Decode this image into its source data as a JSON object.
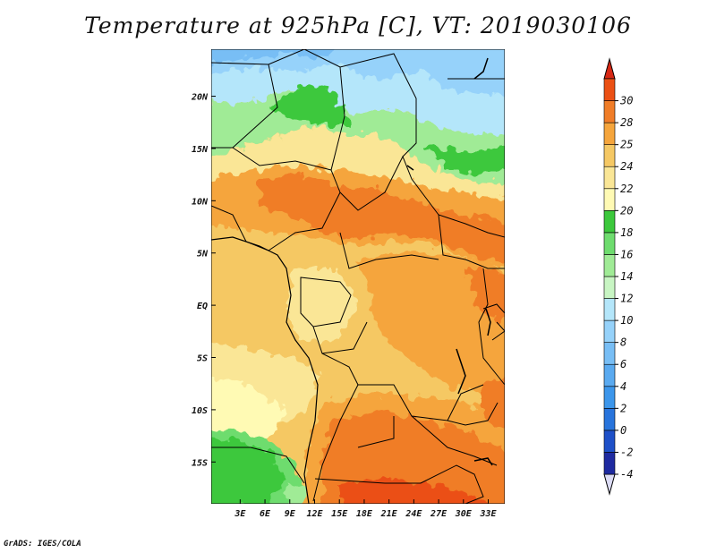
{
  "title": "Temperature at 925hPa [C], VT: 2019030106",
  "credit": "GrADS: IGES/COLA",
  "map": {
    "lat_range": [
      -19,
      24.5
    ],
    "lon_range": [
      -0.5,
      35
    ],
    "lat_ticks": [
      {
        "value": 20,
        "label": "20N"
      },
      {
        "value": 15,
        "label": "15N"
      },
      {
        "value": 10,
        "label": "10N"
      },
      {
        "value": 5,
        "label": "5N"
      },
      {
        "value": 0,
        "label": "EQ"
      },
      {
        "value": -5,
        "label": "5S"
      },
      {
        "value": -10,
        "label": "10S"
      },
      {
        "value": -15,
        "label": "15S"
      }
    ],
    "lon_ticks": [
      {
        "value": 3,
        "label": "3E"
      },
      {
        "value": 6,
        "label": "6E"
      },
      {
        "value": 9,
        "label": "9E"
      },
      {
        "value": 12,
        "label": "12E"
      },
      {
        "value": 15,
        "label": "15E"
      },
      {
        "value": 18,
        "label": "18E"
      },
      {
        "value": 21,
        "label": "21E"
      },
      {
        "value": 24,
        "label": "24E"
      },
      {
        "value": 27,
        "label": "27E"
      },
      {
        "value": 30,
        "label": "30E"
      },
      {
        "value": 33,
        "label": "33E"
      }
    ]
  },
  "colorbar": {
    "levels": [
      "-4",
      "-2",
      "0",
      "2",
      "4",
      "6",
      "8",
      "10",
      "12",
      "14",
      "16",
      "18",
      "20",
      "22",
      "24",
      "25",
      "28",
      "30"
    ],
    "colors": [
      "#1e2aa0",
      "#1e50c8",
      "#2874dc",
      "#3c96eb",
      "#5aaaf0",
      "#78bef5",
      "#96d2fa",
      "#b4e6fa",
      "#c8f5c3",
      "#a0eb96",
      "#6edc6e",
      "#3cc83c",
      "#fffab4",
      "#fae696",
      "#f5c864",
      "#f5a53c",
      "#f07d28",
      "#eb5014"
    ],
    "under_color": "#dcdcf5",
    "over_color": "#d72814"
  }
}
